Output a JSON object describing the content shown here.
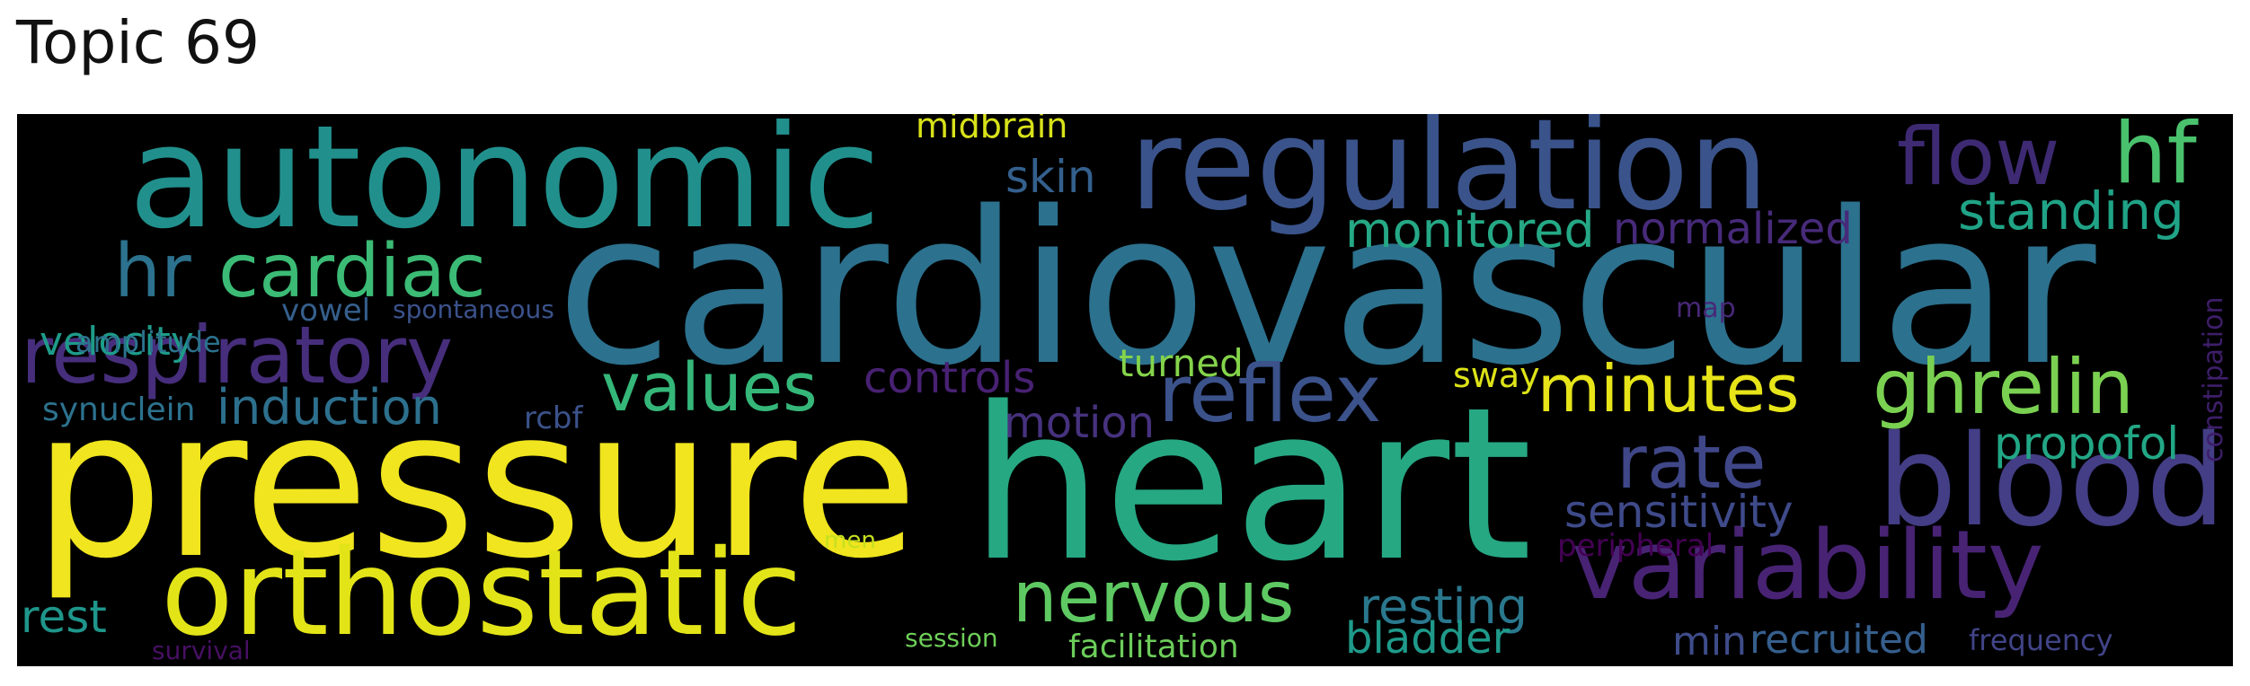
{
  "title": "Topic 69",
  "words": {
    "cardiovascular": "cardiovascular",
    "pressure": "pressure",
    "heart": "heart",
    "autonomic": "autonomic",
    "regulation": "regulation",
    "orthostatic": "orthostatic",
    "blood": "blood",
    "variability": "variability",
    "respiratory": "respiratory",
    "cardiac": "cardiac",
    "hr": "hr",
    "reflex": "reflex",
    "minutes": "minutes",
    "ghrelin": "ghrelin",
    "nervous": "nervous",
    "values": "values",
    "rate": "rate",
    "flow": "flow",
    "hf": "hf",
    "standing": "standing",
    "monitored": "monitored",
    "normalized": "normalized",
    "skin": "skin",
    "midbrain": "midbrain",
    "induction": "induction",
    "controls": "controls",
    "motion": "motion",
    "sensitivity": "sensitivity",
    "resting": "resting",
    "bladder": "bladder",
    "propofol": "propofol",
    "rest": "rest",
    "velocity": "velocity",
    "amplitude": "amplitude",
    "turned": "turned",
    "synuclein": "synuclein",
    "vowel": "vowel",
    "spontaneous": "spontaneous",
    "rcbf": "rcbf",
    "sway": "sway",
    "map": "map",
    "constipation": "constipation",
    "peripheral": "peripheral",
    "men": "men",
    "session": "session",
    "facilitation": "facilitation",
    "min": "min",
    "recruited": "recruited",
    "frequency": "frequency",
    "survival": "survival"
  }
}
